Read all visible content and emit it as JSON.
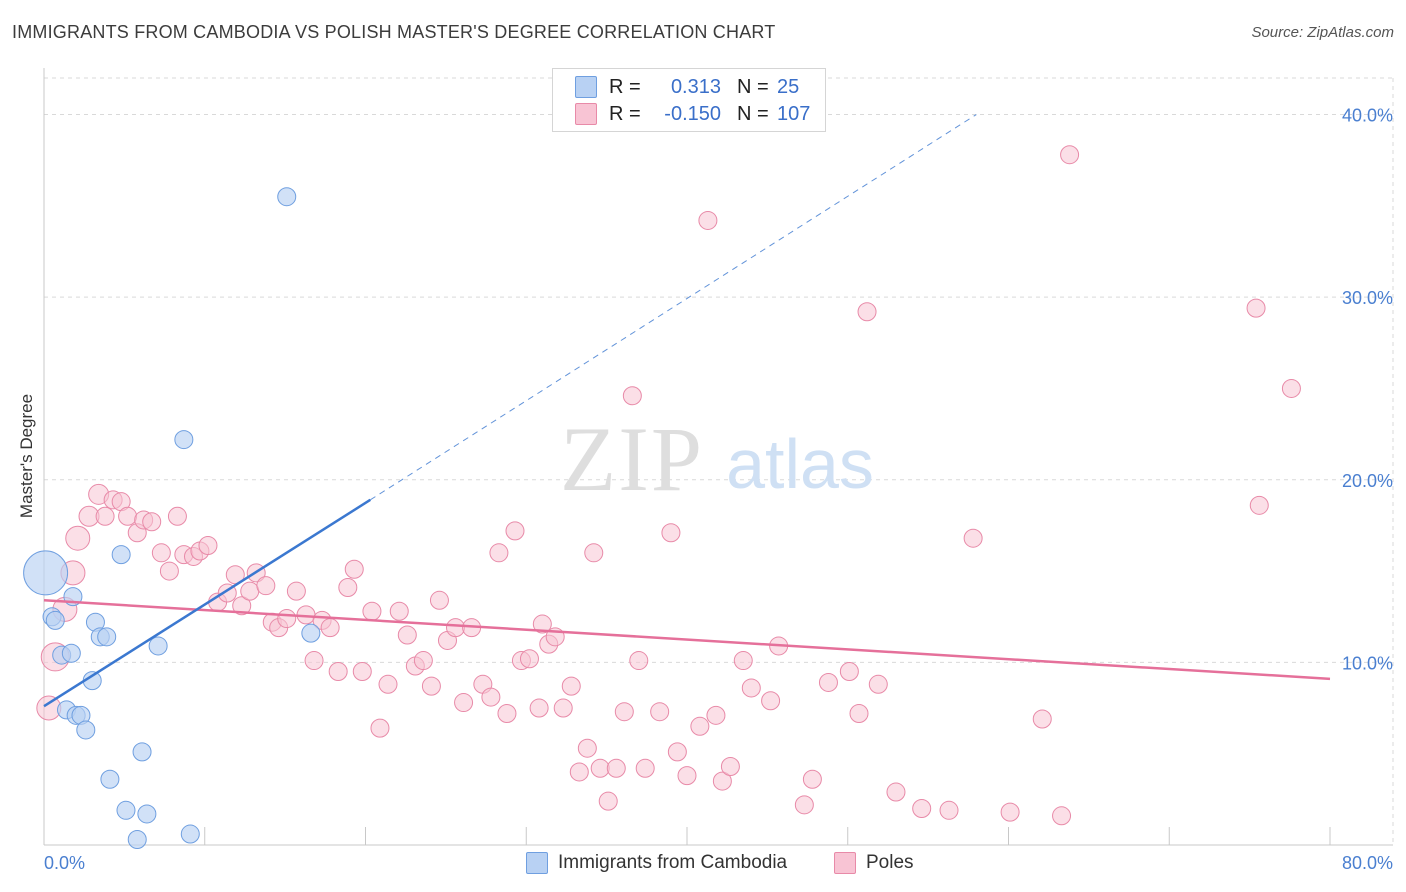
{
  "title": "IMMIGRANTS FROM CAMBODIA VS POLISH MASTER'S DEGREE CORRELATION CHART",
  "source": "Source: ZipAtlas.com",
  "watermark": {
    "zip": "ZIP",
    "atlas": "atlas"
  },
  "legend": {
    "r_label": "R =",
    "n_label": "N =",
    "series": [
      {
        "name": "Immigrants from Cambodia",
        "r": "0.313",
        "n": "25",
        "fill": "#b8d1f3",
        "stroke": "#6f9fe0"
      },
      {
        "name": "Poles",
        "r": "-0.150",
        "n": "107",
        "fill": "#f8c4d4",
        "stroke": "#e88aa8"
      }
    ]
  },
  "colors": {
    "blue_line": "#3b78d0",
    "pink_line": "#e5709a",
    "axis_text": "#4a7fd0",
    "grid": "#d9d9d9"
  },
  "chart_data": {
    "type": "scatter",
    "title": "IMMIGRANTS FROM CAMBODIA VS POLISH MASTER'S DEGREE CORRELATION CHART",
    "xlabel": "",
    "ylabel": "Master's Degree",
    "xlim": [
      0,
      80
    ],
    "ylim": [
      0,
      42
    ],
    "x_tick_labels": [
      "0.0%",
      "80.0%"
    ],
    "y_ticks": [
      10,
      20,
      30,
      40
    ],
    "y_tick_labels": [
      "10.0%",
      "20.0%",
      "30.0%",
      "40.0%"
    ],
    "series": [
      {
        "name": "Immigrants from Cambodia",
        "color": "#6f9fe0",
        "points": [
          [
            0.1,
            14.9,
            22
          ],
          [
            0.5,
            12.5,
            9
          ],
          [
            0.7,
            12.3,
            9
          ],
          [
            1.1,
            10.4,
            9
          ],
          [
            1.7,
            10.5,
            9
          ],
          [
            1.8,
            13.6,
            9
          ],
          [
            1.4,
            7.4,
            9
          ],
          [
            2.0,
            7.1,
            9
          ],
          [
            2.3,
            7.1,
            9
          ],
          [
            2.6,
            6.3,
            9
          ],
          [
            3.0,
            9.0,
            9
          ],
          [
            3.2,
            12.2,
            9
          ],
          [
            3.5,
            11.4,
            9
          ],
          [
            3.9,
            11.4,
            9
          ],
          [
            4.1,
            3.6,
            9
          ],
          [
            4.8,
            15.9,
            9
          ],
          [
            5.1,
            1.9,
            9
          ],
          [
            5.8,
            0.3,
            9
          ],
          [
            6.1,
            5.1,
            9
          ],
          [
            6.4,
            1.7,
            9
          ],
          [
            7.1,
            10.9,
            9
          ],
          [
            8.7,
            22.2,
            9
          ],
          [
            9.1,
            0.6,
            9
          ],
          [
            15.1,
            35.5,
            9
          ],
          [
            16.6,
            11.6,
            9
          ]
        ],
        "trend": {
          "x": [
            0,
            20.3
          ],
          "y": [
            7.6,
            18.9
          ]
        },
        "trend_extended": {
          "x": [
            20.3,
            58
          ],
          "y": [
            18.9,
            40
          ]
        }
      },
      {
        "name": "Poles",
        "color": "#e88aa8",
        "points": [
          [
            0.3,
            7.5,
            12
          ],
          [
            0.7,
            10.3,
            14
          ],
          [
            1.3,
            12.9,
            12
          ],
          [
            1.8,
            14.9,
            12
          ],
          [
            2.1,
            16.8,
            12
          ],
          [
            2.8,
            18.0,
            10
          ],
          [
            3.4,
            19.2,
            10
          ],
          [
            3.8,
            18.0,
            9
          ],
          [
            4.3,
            18.9,
            9
          ],
          [
            4.8,
            18.8,
            9
          ],
          [
            5.2,
            18.0,
            9
          ],
          [
            5.8,
            17.1,
            9
          ],
          [
            6.2,
            17.8,
            9
          ],
          [
            6.7,
            17.7,
            9
          ],
          [
            7.3,
            16.0,
            9
          ],
          [
            7.8,
            15.0,
            9
          ],
          [
            8.3,
            18.0,
            9
          ],
          [
            8.7,
            15.9,
            9
          ],
          [
            9.3,
            15.8,
            9
          ],
          [
            9.7,
            16.1,
            9
          ],
          [
            10.2,
            16.4,
            9
          ],
          [
            10.8,
            13.3,
            9
          ],
          [
            11.4,
            13.8,
            9
          ],
          [
            11.9,
            14.8,
            9
          ],
          [
            12.3,
            13.1,
            9
          ],
          [
            12.8,
            13.9,
            9
          ],
          [
            13.2,
            14.9,
            9
          ],
          [
            13.8,
            14.2,
            9
          ],
          [
            14.2,
            12.2,
            9
          ],
          [
            14.6,
            11.9,
            9
          ],
          [
            15.1,
            12.4,
            9
          ],
          [
            15.7,
            13.9,
            9
          ],
          [
            16.3,
            12.6,
            9
          ],
          [
            16.8,
            10.1,
            9
          ],
          [
            17.3,
            12.3,
            9
          ],
          [
            17.8,
            11.9,
            9
          ],
          [
            18.3,
            9.5,
            9
          ],
          [
            18.9,
            14.1,
            9
          ],
          [
            19.3,
            15.1,
            9
          ],
          [
            19.8,
            9.5,
            9
          ],
          [
            20.4,
            12.8,
            9
          ],
          [
            20.9,
            6.4,
            9
          ],
          [
            21.4,
            8.8,
            9
          ],
          [
            22.1,
            12.8,
            9
          ],
          [
            22.6,
            11.5,
            9
          ],
          [
            23.1,
            9.8,
            9
          ],
          [
            23.6,
            10.1,
            9
          ],
          [
            24.1,
            8.7,
            9
          ],
          [
            24.6,
            13.4,
            9
          ],
          [
            25.1,
            11.2,
            9
          ],
          [
            25.6,
            11.9,
            9
          ],
          [
            26.1,
            7.8,
            9
          ],
          [
            26.6,
            11.9,
            9
          ],
          [
            27.3,
            8.8,
            9
          ],
          [
            27.8,
            8.1,
            9
          ],
          [
            28.3,
            16.0,
            9
          ],
          [
            28.8,
            7.2,
            9
          ],
          [
            29.3,
            17.2,
            9
          ],
          [
            29.7,
            10.1,
            9
          ],
          [
            30.2,
            10.2,
            9
          ],
          [
            30.8,
            7.5,
            9
          ],
          [
            31.0,
            12.1,
            9
          ],
          [
            31.4,
            11.0,
            9
          ],
          [
            31.8,
            11.4,
            9
          ],
          [
            32.3,
            7.5,
            9
          ],
          [
            32.8,
            8.7,
            9
          ],
          [
            33.3,
            4.0,
            9
          ],
          [
            33.8,
            5.3,
            9
          ],
          [
            34.2,
            16.0,
            9
          ],
          [
            34.6,
            4.2,
            9
          ],
          [
            35.1,
            2.4,
            9
          ],
          [
            35.6,
            4.2,
            9
          ],
          [
            36.1,
            7.3,
            9
          ],
          [
            36.6,
            24.6,
            9
          ],
          [
            37.0,
            10.1,
            9
          ],
          [
            37.4,
            4.2,
            9
          ],
          [
            38.3,
            7.3,
            9
          ],
          [
            39.0,
            17.1,
            9
          ],
          [
            39.4,
            5.1,
            9
          ],
          [
            40.0,
            3.8,
            9
          ],
          [
            40.8,
            6.5,
            9
          ],
          [
            41.3,
            34.2,
            9
          ],
          [
            41.8,
            7.1,
            9
          ],
          [
            42.2,
            3.5,
            9
          ],
          [
            42.7,
            4.3,
            9
          ],
          [
            43.5,
            10.1,
            9
          ],
          [
            44.0,
            8.6,
            9
          ],
          [
            45.2,
            7.9,
            9
          ],
          [
            45.7,
            10.9,
            9
          ],
          [
            47.3,
            2.2,
            9
          ],
          [
            47.8,
            3.6,
            9
          ],
          [
            48.8,
            8.9,
            9
          ],
          [
            50.1,
            9.5,
            9
          ],
          [
            50.7,
            7.2,
            9
          ],
          [
            51.2,
            29.2,
            9
          ],
          [
            51.9,
            8.8,
            9
          ],
          [
            53.0,
            2.9,
            9
          ],
          [
            54.6,
            2.0,
            9
          ],
          [
            56.3,
            1.9,
            9
          ],
          [
            57.8,
            16.8,
            9
          ],
          [
            60.1,
            1.8,
            9
          ],
          [
            62.1,
            6.9,
            9
          ],
          [
            63.3,
            1.6,
            9
          ],
          [
            63.8,
            37.8,
            9
          ],
          [
            75.4,
            29.4,
            9
          ],
          [
            75.6,
            18.6,
            9
          ],
          [
            77.6,
            25.0,
            9
          ]
        ],
        "trend": {
          "x": [
            0,
            80
          ],
          "y": [
            13.4,
            9.1
          ]
        }
      }
    ]
  }
}
